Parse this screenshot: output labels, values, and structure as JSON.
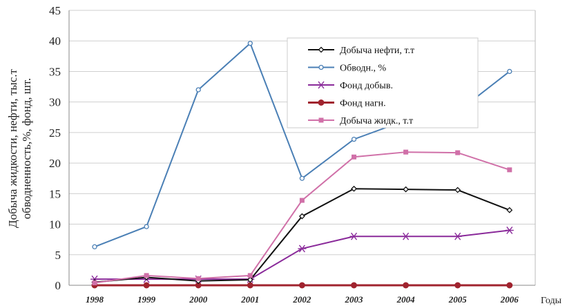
{
  "chart_data": {
    "type": "line",
    "title": "",
    "xlabel": "Годы",
    "ylabel": [
      "Добыча жидкости, нефти,  тыс.т",
      "обводненность,%, фонд, шт."
    ],
    "x": [
      "1998",
      "1999",
      "2000",
      "2001",
      "2002",
      "2003",
      "2004",
      "2005",
      "2006"
    ],
    "ylim": [
      0,
      45
    ],
    "yticks": [
      0,
      5,
      10,
      15,
      20,
      25,
      30,
      35,
      40,
      45
    ],
    "grid": true,
    "legend_position": "top-right",
    "series": [
      {
        "name": "Добыча нефти, т.т",
        "color": "#111111",
        "marker": "diamond-open",
        "values": [
          0.5,
          1.3,
          0.7,
          0.9,
          11.3,
          15.8,
          15.7,
          15.6,
          12.3
        ]
      },
      {
        "name": "Обводн., %",
        "color": "#4a7fb5",
        "marker": "circle-open",
        "values": [
          6.3,
          9.6,
          32,
          39.6,
          17.5,
          23.9,
          27,
          28.4,
          35
        ]
      },
      {
        "name": "Фонд добыв.",
        "color": "#8a2a9a",
        "marker": "star",
        "values": [
          1,
          1,
          1,
          1,
          6,
          8,
          8,
          8,
          9
        ]
      },
      {
        "name": "Фонд нагн.",
        "color": "#a0232e",
        "marker": "circle",
        "values": [
          0,
          0,
          0,
          0,
          0,
          0,
          0,
          0,
          0
        ]
      },
      {
        "name": "Добыча жидк., т.т",
        "color": "#d070a8",
        "marker": "square",
        "values": [
          0.4,
          1.6,
          1.1,
          1.6,
          13.9,
          21,
          21.8,
          21.7,
          18.9
        ]
      }
    ]
  }
}
